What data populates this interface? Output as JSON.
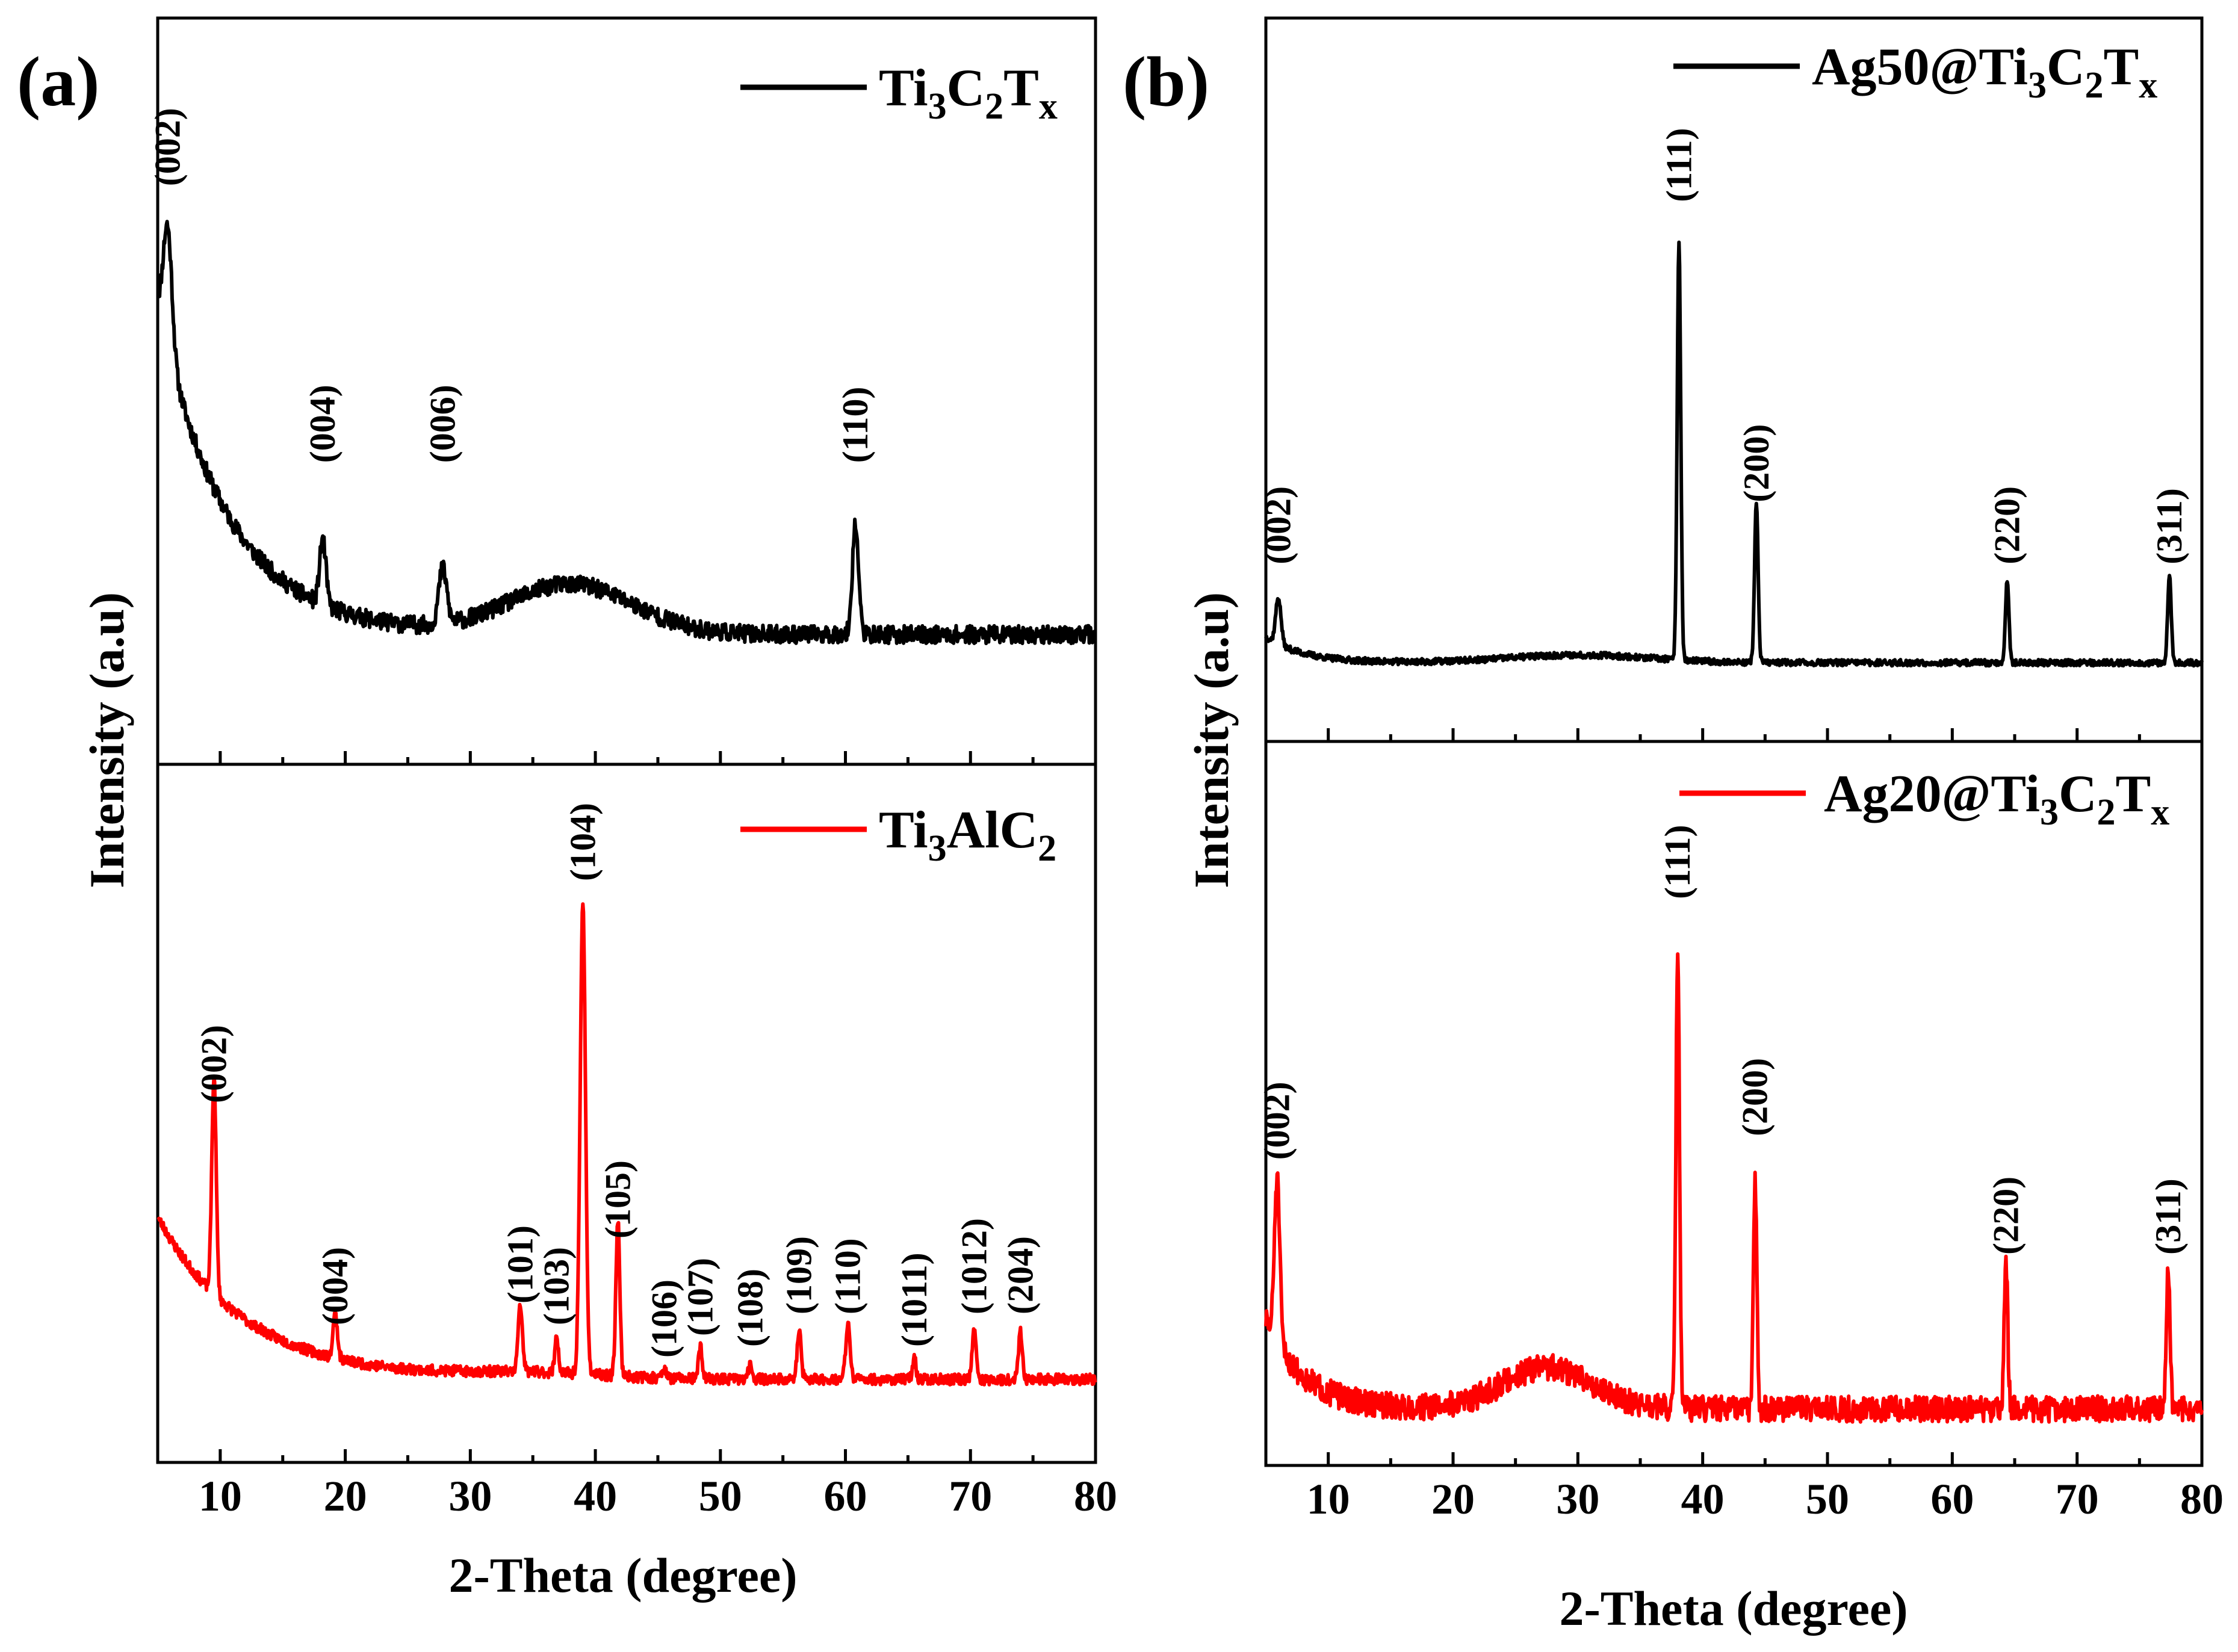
{
  "panels": {
    "a": {
      "tag": "(a)",
      "xlabel": "2-Theta (degree)",
      "ylabel": "Intensity (a.u)"
    },
    "b": {
      "tag": "(b)",
      "xlabel": "2-Theta (degree)",
      "ylabel": "Intensity (a.u)"
    }
  },
  "chart_data": [
    {
      "type": "line",
      "panel": "(a)",
      "position": "top",
      "series": [
        {
          "name": "Ti3C2Tx",
          "color": "#000000"
        }
      ],
      "legend": {
        "base": "Ti",
        "sub1": "3",
        "mid": "C",
        "sub2": "2",
        "end": "T",
        "sub3": "x"
      },
      "x_range": [
        5,
        80
      ],
      "y_range": [
        0,
        100
      ],
      "baseline": 18,
      "decay": {
        "amp": 60,
        "tau": 5.5
      },
      "hump": {
        "center": 38,
        "width": 7,
        "amp": 9
      },
      "noise": 1.6,
      "peaks": [
        {
          "x": 5.8,
          "h": 22,
          "w": 0.5,
          "label": "(002)",
          "lh": 99
        },
        {
          "x": 18.2,
          "h": 12,
          "w": 0.35,
          "label": "(004)",
          "lh": 49
        },
        {
          "x": 27.8,
          "h": 10,
          "w": 0.45,
          "label": "(006)",
          "lh": 49
        },
        {
          "x": 60.8,
          "h": 20,
          "w": 0.35,
          "label": "(110)",
          "lh": 49
        }
      ],
      "xticks": [
        10,
        20,
        30,
        40,
        50,
        60,
        70,
        80
      ],
      "xlabel": "2-Theta (degree)",
      "ylabel": "Intensity (a.u)"
    },
    {
      "type": "line",
      "panel": "(a)",
      "position": "bottom",
      "series": [
        {
          "name": "Ti3AlC2",
          "color": "#ff0000"
        }
      ],
      "legend": {
        "base": "Ti",
        "sub1": "3",
        "mid": "AlC",
        "sub2": "2",
        "end": "",
        "sub3": ""
      },
      "x_range": [
        5,
        80
      ],
      "y_range": [
        0,
        100
      ],
      "baseline": 7,
      "decay": {
        "amp": 30,
        "tau": 7
      },
      "hump": {
        "center": 35,
        "width": 8,
        "amp": 1
      },
      "noise": 1.0,
      "peaks": [
        {
          "x": 9.5,
          "h": 40,
          "w": 0.25,
          "label": "(002)",
          "lh": 58
        },
        {
          "x": 19.2,
          "h": 8,
          "w": 0.25,
          "label": "(004)",
          "lh": 17
        },
        {
          "x": 34.0,
          "h": 12,
          "w": 0.25,
          "label": "(101)",
          "lh": 21
        },
        {
          "x": 36.9,
          "h": 7,
          "w": 0.2,
          "label": "(103)",
          "lh": 17
        },
        {
          "x": 39.0,
          "h": 87,
          "w": 0.3,
          "label": "(104)",
          "lh": 99
        },
        {
          "x": 41.8,
          "h": 29,
          "w": 0.22,
          "label": "(105)",
          "lh": 33
        },
        {
          "x": 45.5,
          "h": 2,
          "w": 0.2,
          "label": "(106)",
          "lh": 11
        },
        {
          "x": 48.4,
          "h": 6,
          "w": 0.2,
          "label": "(107)",
          "lh": 15
        },
        {
          "x": 52.4,
          "h": 3,
          "w": 0.2,
          "label": "(108)",
          "lh": 13
        },
        {
          "x": 56.3,
          "h": 9,
          "w": 0.22,
          "label": "(109)",
          "lh": 19
        },
        {
          "x": 60.2,
          "h": 10,
          "w": 0.25,
          "label": "(110)",
          "lh": 19
        },
        {
          "x": 65.5,
          "h": 4,
          "w": 0.2,
          "label": "(1011)",
          "lh": 13
        },
        {
          "x": 70.3,
          "h": 9,
          "w": 0.22,
          "label": "(1012)",
          "lh": 19
        },
        {
          "x": 74.0,
          "h": 9,
          "w": 0.22,
          "label": "(204)",
          "lh": 19
        }
      ],
      "xticks": [
        10,
        20,
        30,
        40,
        50,
        60,
        70,
        80
      ],
      "xlabel": "2-Theta (degree)",
      "ylabel": "Intensity (a.u)"
    },
    {
      "type": "line",
      "panel": "(b)",
      "position": "top",
      "series": [
        {
          "name": "Ag50@Ti3C2Tx",
          "color": "#000000"
        }
      ],
      "legend": {
        "base": "Ag50@Ti",
        "sub1": "3",
        "mid": "C",
        "sub2": "2",
        "end": "T",
        "sub3": "x"
      },
      "x_range": [
        5,
        80
      ],
      "y_range": [
        0,
        100
      ],
      "baseline": 8,
      "decay": {
        "amp": 5,
        "tau": 3
      },
      "hump": {
        "center": 30,
        "width": 8,
        "amp": 1.5
      },
      "noise": 0.6,
      "peaks": [
        {
          "x": 6.0,
          "h": 9,
          "w": 0.3,
          "label": "(002)",
          "lh": 27
        },
        {
          "x": 38.1,
          "h": 81,
          "w": 0.2,
          "label": "(111)",
          "lh": 97
        },
        {
          "x": 44.3,
          "h": 31,
          "w": 0.2,
          "label": "(200)",
          "lh": 39
        },
        {
          "x": 64.4,
          "h": 16,
          "w": 0.2,
          "label": "(220)",
          "lh": 27
        },
        {
          "x": 77.4,
          "h": 17,
          "w": 0.2,
          "label": "(311)",
          "lh": 27
        }
      ],
      "xticks": [
        10,
        20,
        30,
        40,
        50,
        60,
        70,
        80
      ],
      "xlabel": "2-Theta (degree)",
      "ylabel": "Intensity (a.u)"
    },
    {
      "type": "line",
      "panel": "(b)",
      "position": "bottom",
      "series": [
        {
          "name": "Ag20@Ti3C2Tx",
          "color": "#ff0000"
        }
      ],
      "legend": {
        "base": "Ag20@Ti",
        "sub1": "3",
        "mid": "C",
        "sub2": "2",
        "end": "T",
        "sub3": "x"
      },
      "x_range": [
        5,
        80
      ],
      "y_range": [
        0,
        100
      ],
      "baseline": 7,
      "decay": {
        "amp": 15,
        "tau": 3
      },
      "hump": {
        "center": 27.5,
        "width": 5,
        "amp": 7
      },
      "noise": 2.2,
      "peaks": [
        {
          "x": 5.9,
          "h": 28,
          "w": 0.3,
          "label": "(002)",
          "lh": 49
        },
        {
          "x": 38.0,
          "h": 78,
          "w": 0.2,
          "label": "(111)",
          "lh": 93
        },
        {
          "x": 44.2,
          "h": 38,
          "w": 0.2,
          "label": "(200)",
          "lh": 53
        },
        {
          "x": 64.3,
          "h": 25,
          "w": 0.2,
          "label": "(220)",
          "lh": 33
        },
        {
          "x": 77.3,
          "h": 24,
          "w": 0.2,
          "label": "(311)",
          "lh": 33
        }
      ],
      "xticks": [
        10,
        20,
        30,
        40,
        50,
        60,
        70,
        80
      ],
      "xlabel": "2-Theta (degree)",
      "ylabel": "Intensity (a.u)"
    }
  ]
}
